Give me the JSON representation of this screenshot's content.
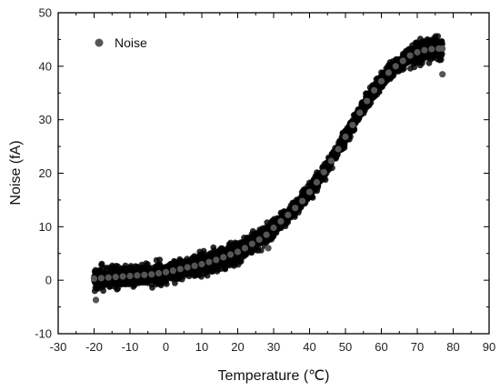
{
  "chart_data": {
    "type": "scatter",
    "title": "",
    "xlabel": "Temperature (℃)",
    "ylabel": "Noise (fA)",
    "xlim": [
      -30,
      90
    ],
    "ylim": [
      -10,
      50
    ],
    "xticks": [
      -30,
      -20,
      -10,
      0,
      10,
      20,
      30,
      40,
      50,
      60,
      70,
      80,
      90
    ],
    "yticks": [
      -10,
      0,
      10,
      20,
      30,
      40,
      50
    ],
    "xtick_labels": [
      "-30",
      "-20",
      "-10",
      "0",
      "10",
      "20",
      "30",
      "40",
      "50",
      "60",
      "70",
      "80",
      "90"
    ],
    "ytick_labels": [
      "-10",
      "0",
      "10",
      "20",
      "30",
      "40",
      "50"
    ],
    "grid": false,
    "legend": {
      "position": "top-left",
      "entries": [
        "Noise"
      ]
    },
    "series": [
      {
        "name": "Noise",
        "color": "#555555",
        "x": [
          -20,
          -18,
          -16,
          -14,
          -12,
          -10,
          -8,
          -6,
          -4,
          -2,
          0,
          2,
          4,
          6,
          8,
          10,
          12,
          14,
          16,
          18,
          20,
          22,
          24,
          26,
          28,
          30,
          32,
          34,
          36,
          38,
          40,
          42,
          44,
          46,
          48,
          50,
          52,
          54,
          56,
          58,
          60,
          62,
          64,
          66,
          68,
          70,
          72,
          74,
          76,
          77
        ],
        "y": [
          0.3,
          0.4,
          0.5,
          0.6,
          0.7,
          0.8,
          0.9,
          1.0,
          1.1,
          1.3,
          1.5,
          1.8,
          2.1,
          2.4,
          2.7,
          3.0,
          3.4,
          3.8,
          4.3,
          4.8,
          5.3,
          6.0,
          6.8,
          7.6,
          8.5,
          9.8,
          11.0,
          12.2,
          13.5,
          14.8,
          16.5,
          18.3,
          20.2,
          22.3,
          24.5,
          26.8,
          29.0,
          31.3,
          33.5,
          35.5,
          37.2,
          38.8,
          40.0,
          41.0,
          42.0,
          42.6,
          43.0,
          43.2,
          43.3,
          43.3
        ],
        "outliers": [
          {
            "x": -19.5,
            "y": -3.7
          },
          {
            "x": 28.5,
            "y": 6.0
          },
          {
            "x": 77.0,
            "y": 38.5
          }
        ]
      }
    ]
  }
}
